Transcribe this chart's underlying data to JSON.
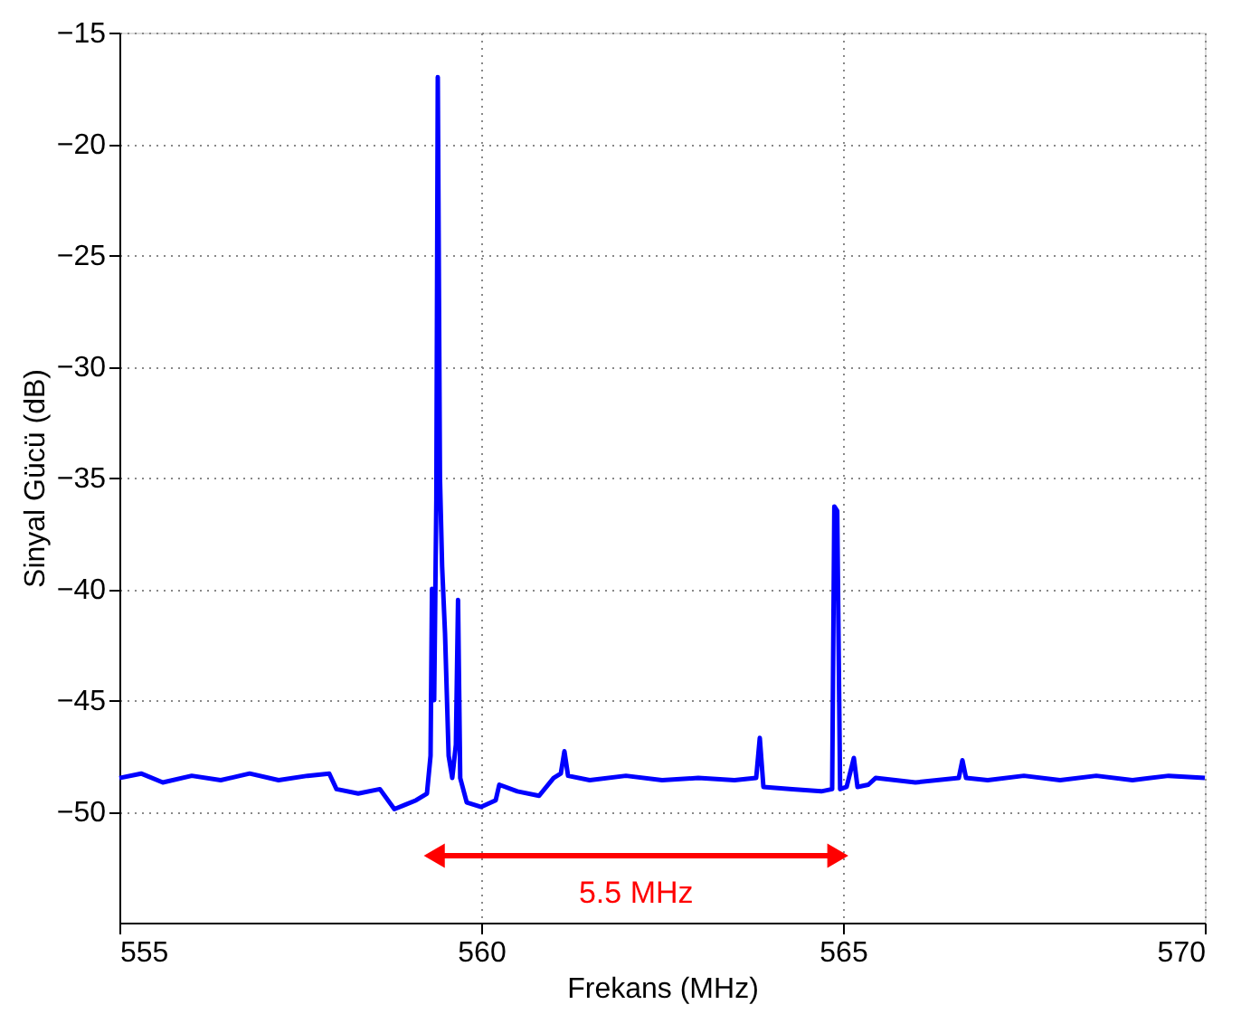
{
  "chart_data": {
    "type": "line",
    "xlabel": "Frekans (MHz)",
    "ylabel": "Sinyal Gücü (dB)",
    "x": [
      555.0,
      555.3,
      555.6,
      556.0,
      556.4,
      556.8,
      557.2,
      557.6,
      557.9,
      558.0,
      558.3,
      558.6,
      558.8,
      558.95,
      559.1,
      559.25,
      559.3,
      559.32,
      559.35,
      559.38,
      559.4,
      559.43,
      559.46,
      559.5,
      559.55,
      559.6,
      559.65,
      559.68,
      559.71,
      559.8,
      560.0,
      560.2,
      560.25,
      560.5,
      560.8,
      561.0,
      561.1,
      561.15,
      561.2,
      561.5,
      562.0,
      562.5,
      563.0,
      563.5,
      563.8,
      563.85,
      563.9,
      564.3,
      564.7,
      564.85,
      564.88,
      564.92,
      564.96,
      565.05,
      565.15,
      565.2,
      565.35,
      565.45,
      566.0,
      566.6,
      566.65,
      566.7,
      567.0,
      567.5,
      568.0,
      568.5,
      569.0,
      569.5,
      570.0
    ],
    "series": [
      {
        "color": "#0000ff",
        "values": [
          -48.5,
          -48.3,
          -48.7,
          -48.4,
          -48.6,
          -48.3,
          -48.6,
          -48.4,
          -48.3,
          -49.0,
          -49.2,
          -49.0,
          -49.9,
          -49.7,
          -49.5,
          -49.2,
          -47.5,
          -40,
          -45,
          -36,
          -17,
          -35,
          -39,
          -42,
          -47.5,
          -48.5,
          -47,
          -40.5,
          -48.5,
          -49.6,
          -49.8,
          -49.5,
          -48.8,
          -49.1,
          -49.3,
          -48.5,
          -48.3,
          -47.3,
          -48.4,
          -48.6,
          -48.4,
          -48.6,
          -48.5,
          -48.6,
          -48.5,
          -46.7,
          -48.9,
          -49.0,
          -49.1,
          -49.0,
          -36.3,
          -36.5,
          -49.0,
          -48.9,
          -47.6,
          -48.9,
          -48.8,
          -48.5,
          -48.7,
          -48.5,
          -47.7,
          -48.5,
          -48.6,
          -48.4,
          -48.6,
          -48.4,
          -48.6,
          -48.4,
          -48.5
        ]
      }
    ],
    "xlim": [
      555,
      570
    ],
    "xticks": [
      555,
      560,
      565,
      570
    ],
    "ylim": [
      -55,
      -15
    ],
    "yticks": [
      -50,
      -45,
      -40,
      -35,
      -30,
      -25,
      -20,
      -15
    ],
    "grid": true,
    "line_style": "solid",
    "marker": "none",
    "annotations": [
      "5.5 MHz"
    ]
  }
}
